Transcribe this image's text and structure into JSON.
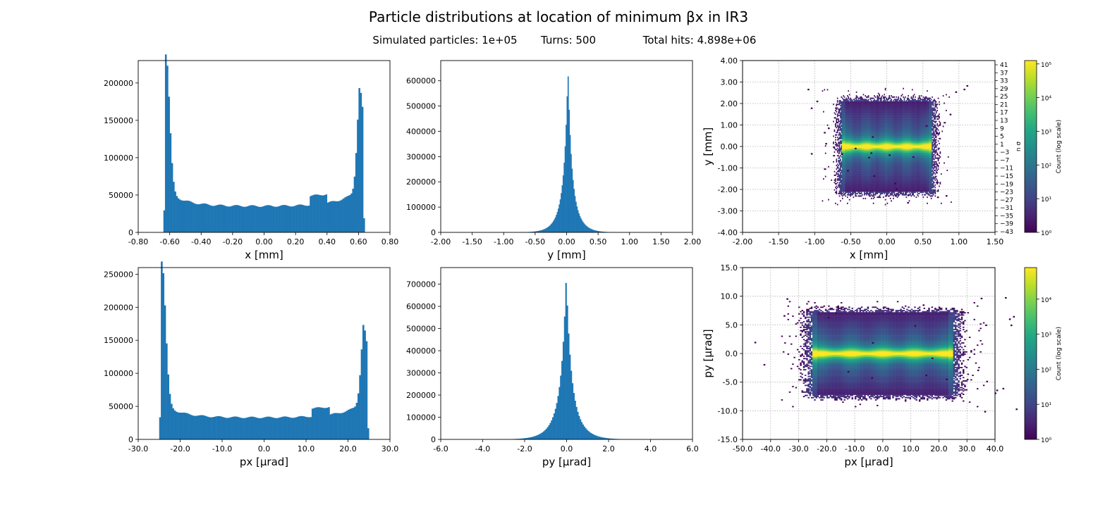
{
  "figure": {
    "title": "Particle distributions at location of minimum βx in IR3",
    "subtitle_parts": [
      "Simulated particles: 1e+05",
      "Turns: 500",
      "Total hits: 4.898e+06"
    ]
  },
  "colors": {
    "bar": "#1f77b4",
    "grid": "#b0b0b0"
  },
  "chart_data": [
    {
      "id": "hist_x",
      "type": "bar",
      "xlabel": "x [mm]",
      "ylabel": "",
      "xlim": [
        -0.8,
        0.8
      ],
      "ylim": [
        0,
        230000
      ],
      "xticks": [
        -0.8,
        -0.6,
        -0.4,
        -0.2,
        0,
        0.2,
        0.4,
        0.6,
        0.8
      ],
      "xtick_decimals": 2,
      "yticks": [
        0,
        50000,
        100000,
        150000,
        200000
      ],
      "bin_range": [
        -0.64,
        0.64
      ],
      "bins": 128,
      "shape": "edge_peaked",
      "peaks": {
        "left": 218000,
        "right": 186000,
        "plateau": 35000
      }
    },
    {
      "id": "hist_y",
      "type": "bar",
      "xlabel": "y [mm]",
      "ylabel": "",
      "xlim": [
        -2.0,
        2.0
      ],
      "ylim": [
        0,
        680000
      ],
      "xticks": [
        -2,
        -1.5,
        -1,
        -0.5,
        0,
        0.5,
        1,
        1.5,
        2
      ],
      "xtick_decimals": 2,
      "yticks": [
        0,
        100000,
        200000,
        300000,
        400000,
        500000,
        600000
      ],
      "bin_range": [
        -1.0,
        1.0
      ],
      "bins": 128,
      "shape": "center_peaked",
      "peak": 652000,
      "peak_center": 0.02
    },
    {
      "id": "heat_xy",
      "type": "heatmap",
      "xlabel": "x [mm]",
      "ylabel": "y [mm]",
      "xlim": [
        -2.0,
        1.5
      ],
      "ylim": [
        -4.0,
        4.0
      ],
      "xticks": [
        -2,
        -1.5,
        -1,
        -0.5,
        0,
        0.5,
        1,
        1.5
      ],
      "xtick_decimals": 2,
      "yticks": [
        -4,
        -3,
        -2,
        -1,
        0,
        1,
        2,
        3,
        4
      ],
      "ytick_decimals": 2,
      "core": {
        "x_half": 0.62,
        "y_half": 2.1
      },
      "grid": true,
      "right_axis": {
        "label": "n σ",
        "ticks": [
          41,
          37,
          33,
          29,
          25,
          21,
          17,
          13,
          9,
          5,
          1,
          -3,
          -7,
          -11,
          -15,
          -19,
          -23,
          -27,
          -31,
          -35,
          -39,
          -43
        ]
      },
      "colorbar": {
        "label": "Count (log scale)",
        "exponents": [
          0,
          1,
          2,
          3,
          4,
          5
        ],
        "max_exp": 5.1
      }
    },
    {
      "id": "hist_px",
      "type": "bar",
      "xlabel": "px [μrad]",
      "ylabel": "",
      "xlim": [
        -30,
        30
      ],
      "ylim": [
        0,
        260000
      ],
      "xticks": [
        -30,
        -20,
        -10,
        0,
        10,
        20,
        30
      ],
      "xtick_decimals": 1,
      "yticks": [
        0,
        50000,
        100000,
        150000,
        200000,
        250000
      ],
      "bin_range": [
        -25,
        25
      ],
      "bins": 128,
      "shape": "edge_peaked",
      "peaks": {
        "left": 249000,
        "right": 164000,
        "plateau": 33000
      }
    },
    {
      "id": "hist_py",
      "type": "bar",
      "xlabel": "py [μrad]",
      "ylabel": "",
      "xlim": [
        -6.0,
        6.0
      ],
      "ylim": [
        0,
        775000
      ],
      "xticks": [
        -6,
        -4,
        -2,
        0,
        2,
        4,
        6
      ],
      "xtick_decimals": 1,
      "yticks": [
        0,
        100000,
        200000,
        300000,
        400000,
        500000,
        600000,
        700000
      ],
      "bin_range": [
        -4.0,
        4.0
      ],
      "bins": 128,
      "shape": "center_peaked",
      "peak": 738000,
      "peak_center": -0.02
    },
    {
      "id": "heat_pxpy",
      "type": "heatmap",
      "xlabel": "px [μrad]",
      "ylabel": "py [μrad]",
      "xlim": [
        -50,
        40
      ],
      "ylim": [
        -15,
        15
      ],
      "xticks": [
        -50,
        -40,
        -30,
        -20,
        -10,
        0,
        10,
        20,
        30,
        40
      ],
      "xtick_decimals": 1,
      "yticks": [
        -15,
        -10,
        -5,
        0,
        5,
        10,
        15
      ],
      "ytick_decimals": 1,
      "core": {
        "x_half": 25,
        "y_half": 7.2
      },
      "grid": true,
      "colorbar": {
        "label": "Count (log scale)",
        "exponents": [
          0,
          1,
          2,
          3,
          4
        ],
        "max_exp": 4.9
      }
    }
  ]
}
